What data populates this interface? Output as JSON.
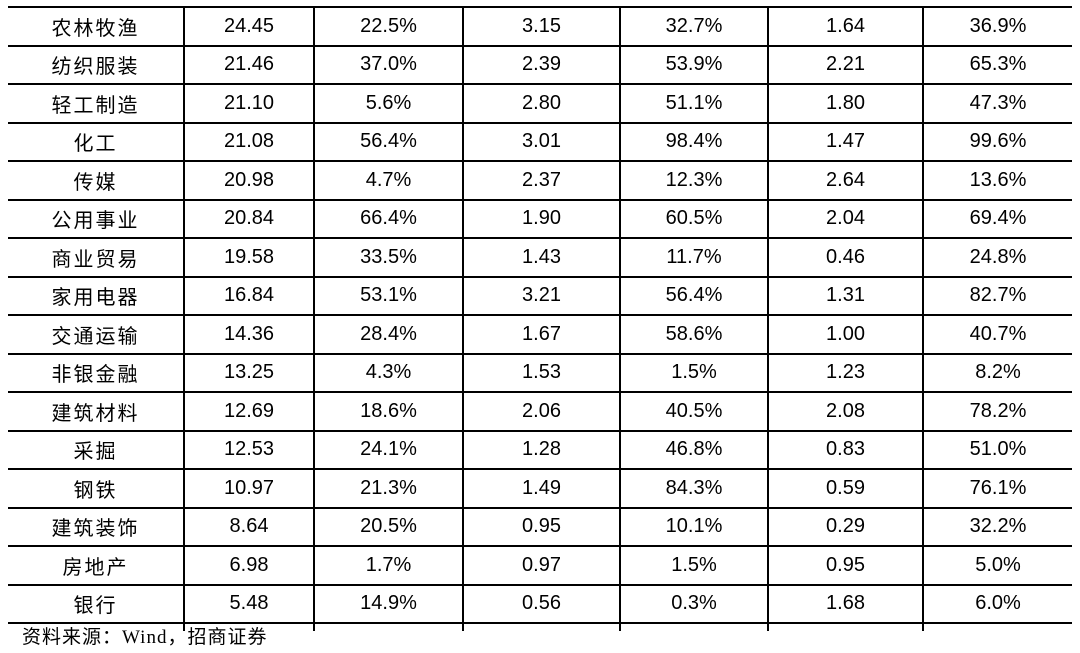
{
  "colors": {
    "background": "#ffffff",
    "text": "#000000",
    "border": "#000000"
  },
  "table": {
    "rows": [
      {
        "industry": "农林牧渔",
        "values": [
          "24.45",
          "22.5%",
          "3.15",
          "32.7%",
          "1.64",
          "36.9%"
        ]
      },
      {
        "industry": "纺织服装",
        "values": [
          "21.46",
          "37.0%",
          "2.39",
          "53.9%",
          "2.21",
          "65.3%"
        ]
      },
      {
        "industry": "轻工制造",
        "values": [
          "21.10",
          "5.6%",
          "2.80",
          "51.1%",
          "1.80",
          "47.3%"
        ]
      },
      {
        "industry": "化工",
        "values": [
          "21.08",
          "56.4%",
          "3.01",
          "98.4%",
          "1.47",
          "99.6%"
        ]
      },
      {
        "industry": "传媒",
        "values": [
          "20.98",
          "4.7%",
          "2.37",
          "12.3%",
          "2.64",
          "13.6%"
        ]
      },
      {
        "industry": "公用事业",
        "values": [
          "20.84",
          "66.4%",
          "1.90",
          "60.5%",
          "2.04",
          "69.4%"
        ]
      },
      {
        "industry": "商业贸易",
        "values": [
          "19.58",
          "33.5%",
          "1.43",
          "11.7%",
          "0.46",
          "24.8%"
        ]
      },
      {
        "industry": "家用电器",
        "values": [
          "16.84",
          "53.1%",
          "3.21",
          "56.4%",
          "1.31",
          "82.7%"
        ]
      },
      {
        "industry": "交通运输",
        "values": [
          "14.36",
          "28.4%",
          "1.67",
          "58.6%",
          "1.00",
          "40.7%"
        ]
      },
      {
        "industry": "非银金融",
        "values": [
          "13.25",
          "4.3%",
          "1.53",
          "1.5%",
          "1.23",
          "8.2%"
        ]
      },
      {
        "industry": "建筑材料",
        "values": [
          "12.69",
          "18.6%",
          "2.06",
          "40.5%",
          "2.08",
          "78.2%"
        ]
      },
      {
        "industry": "采掘",
        "values": [
          "12.53",
          "24.1%",
          "1.28",
          "46.8%",
          "0.83",
          "51.0%"
        ]
      },
      {
        "industry": "钢铁",
        "values": [
          "10.97",
          "21.3%",
          "1.49",
          "84.3%",
          "0.59",
          "76.1%"
        ]
      },
      {
        "industry": "建筑装饰",
        "values": [
          "8.64",
          "20.5%",
          "0.95",
          "10.1%",
          "0.29",
          "32.2%"
        ]
      },
      {
        "industry": "房地产",
        "values": [
          "6.98",
          "1.7%",
          "0.97",
          "1.5%",
          "0.95",
          "5.0%"
        ]
      },
      {
        "industry": "银行",
        "values": [
          "5.48",
          "14.9%",
          "0.56",
          "0.3%",
          "1.68",
          "6.0%"
        ]
      }
    ]
  },
  "footer": {
    "source": "资料来源：Wind，招商证券"
  }
}
